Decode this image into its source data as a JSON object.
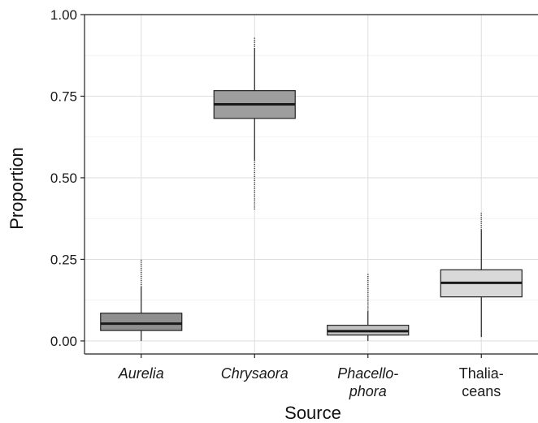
{
  "chart_data": {
    "type": "box",
    "title": "",
    "xlabel": "Source",
    "ylabel": "Proportion",
    "ylim": [
      -0.04,
      1.0
    ],
    "yticks": [
      "0.00",
      "0.25",
      "0.50",
      "0.75",
      "1.00"
    ],
    "grid": true,
    "categories": [
      {
        "lines": [
          "Aurelia"
        ],
        "italic": true
      },
      {
        "lines": [
          "Chrysaora"
        ],
        "italic": true
      },
      {
        "lines": [
          "Phacello-",
          "phora"
        ],
        "italic": true
      },
      {
        "lines": [
          "Thalia-",
          "ceans"
        ],
        "italic": false
      }
    ],
    "boxes": [
      {
        "q1": 0.032,
        "median": 0.053,
        "q3": 0.085,
        "whisker_low": 0.0,
        "whisker_high": 0.165,
        "outlier_max": 0.25,
        "fill": "#8f8f8f"
      },
      {
        "q1": 0.682,
        "median": 0.725,
        "q3": 0.767,
        "whisker_low": 0.555,
        "whisker_high": 0.895,
        "outlier_min": 0.4,
        "outlier_max": 0.93,
        "fill": "#9e9e9e"
      },
      {
        "q1": 0.018,
        "median": 0.03,
        "q3": 0.048,
        "whisker_low": 0.0,
        "whisker_high": 0.09,
        "outlier_max": 0.205,
        "fill": "#c2c2c2"
      },
      {
        "q1": 0.135,
        "median": 0.178,
        "q3": 0.218,
        "whisker_low": 0.012,
        "whisker_high": 0.34,
        "outlier_max": 0.395,
        "fill": "#d9d9d9"
      }
    ]
  }
}
